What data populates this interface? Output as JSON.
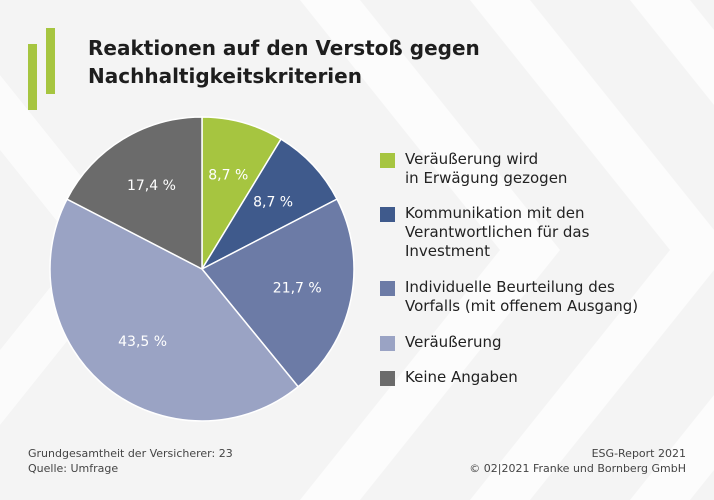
{
  "title_lines": [
    "Reaktionen auf den Verstoß gegen",
    "Nachhaltigkeitskriterien"
  ],
  "chart_data": {
    "type": "pie",
    "title": "Reaktionen auf den Verstoß gegen Nachhaltigkeitskriterien",
    "start_angle_deg": 0,
    "direction": "clockwise",
    "slices": [
      {
        "label_lines": [
          "Veräußerung wird",
          "in Erwägung gezogen"
        ],
        "value": 8.7,
        "display": "8,7 %",
        "color": "#a6c540",
        "text_color": "#ffffff"
      },
      {
        "label_lines": [
          "Kommunikation mit den",
          "Verantwortlichen für das",
          "Investment"
        ],
        "value": 8.7,
        "display": "8,7 %",
        "color": "#3f5a8c",
        "text_color": "#ffffff"
      },
      {
        "label_lines": [
          "Individuelle Beurteilung des",
          "Vorfalls (mit offenem Ausgang)"
        ],
        "value": 21.7,
        "display": "21,7 %",
        "color": "#6c7ba6",
        "text_color": "#ffffff"
      },
      {
        "label_lines": [
          "Veräußerung"
        ],
        "value": 43.5,
        "display": "43,5 %",
        "color": "#9aa3c4",
        "text_color": "#ffffff"
      },
      {
        "label_lines": [
          "Keine Angaben"
        ],
        "value": 17.4,
        "display": "17,4 %",
        "color": "#6b6b6b",
        "text_color": "#ffffff"
      }
    ]
  },
  "footer": {
    "left": [
      "Grundgesamtheit der Versicherer: 23",
      "Quelle: Umfrage"
    ],
    "right": [
      "ESG-Report 2021",
      "© 02|2021 Franke und Bornberg GmbH"
    ]
  },
  "colors": {
    "background": "#f4f4f4",
    "accent": "#a6c540",
    "chevrons": "#ffffff"
  }
}
